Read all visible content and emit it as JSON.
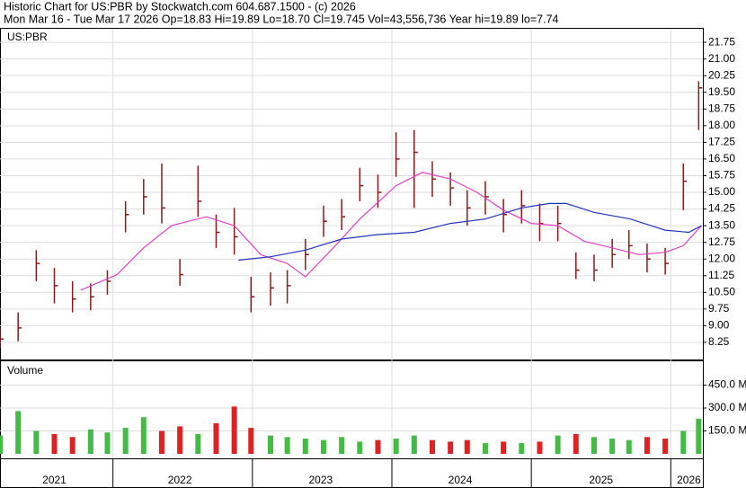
{
  "chart_data": {
    "type": "ohlc",
    "title": "Historic Chart for US:PBR by Stockwatch.com 604.687.1500 - (c) 2026",
    "subtitle": "Mon Mar 16 - Tue Mar 17 2026   Op=18.83   Hi=19.89   Lo=18.70   Cl=19.745   Vol=43,556,736   Year hi=19.89   lo=7.74",
    "symbol": "US:PBR",
    "volume_title": "Volume",
    "xlim": [
      2021.19,
      2026.23
    ],
    "xticks": [
      2022,
      2023,
      2024,
      2025,
      2026
    ],
    "year_labels": [
      {
        "value": 2021.58,
        "label": "2021"
      },
      {
        "value": 2022.48,
        "label": "2022"
      },
      {
        "value": 2023.49,
        "label": "2023"
      },
      {
        "value": 2024.49,
        "label": "2024"
      },
      {
        "value": 2025.5,
        "label": "2025"
      },
      {
        "value": 2026.13,
        "label": "2026"
      }
    ],
    "ylim": [
      7.48,
      22.36
    ],
    "yticks": [
      21.75,
      {
        "value": 21,
        "label": "21.00"
      },
      20.25,
      {
        "value": 19.5,
        "label": "19.50"
      },
      18.75,
      {
        "value": 18,
        "label": "18.00"
      },
      17.25,
      {
        "value": 16.5,
        "label": "16.50"
      },
      15.75,
      {
        "value": 15,
        "label": "15.00"
      },
      14.25,
      {
        "value": 13.5,
        "label": "13.50"
      },
      12.75,
      {
        "value": 12,
        "label": "12.00"
      },
      11.25,
      {
        "value": 10.5,
        "label": "10.50"
      },
      9.75,
      {
        "value": 9,
        "label": "9.00"
      },
      8.25
    ],
    "grid": true,
    "bar_color": "#8b1a1a",
    "up_color": "#44bb44",
    "down_color": "#dd2222",
    "x": [
      2021.19,
      2021.32,
      2021.45,
      2021.58,
      2021.71,
      2021.84,
      2021.96,
      2022.09,
      2022.22,
      2022.35,
      2022.48,
      2022.61,
      2022.74,
      2022.87,
      2022.99,
      2023.13,
      2023.25,
      2023.38,
      2023.51,
      2023.64,
      2023.77,
      2023.9,
      2024.03,
      2024.16,
      2024.29,
      2024.42,
      2024.54,
      2024.67,
      2024.8,
      2024.93,
      2025.06,
      2025.19,
      2025.32,
      2025.45,
      2025.58,
      2025.7,
      2025.83,
      2025.96,
      2026.09,
      2026.2
    ],
    "high": [
      8.9,
      9.6,
      12.4,
      11.6,
      11.0,
      10.9,
      11.5,
      14.6,
      15.6,
      16.3,
      12.0,
      16.2,
      14.0,
      14.3,
      11.2,
      11.4,
      11.5,
      12.9,
      14.4,
      14.7,
      16.1,
      15.8,
      17.7,
      17.8,
      16.4,
      15.9,
      15.1,
      15.5,
      14.7,
      15.1,
      14.5,
      14.4,
      12.3,
      12.2,
      12.9,
      13.3,
      12.7,
      12.5,
      16.3,
      20.0
    ],
    "low": [
      8.0,
      8.3,
      11.0,
      10.0,
      9.6,
      9.7,
      10.4,
      13.2,
      14.0,
      13.6,
      10.8,
      13.9,
      12.5,
      12.2,
      9.6,
      9.9,
      10.0,
      11.5,
      13.0,
      13.3,
      14.6,
      14.3,
      15.7,
      14.3,
      14.8,
      14.4,
      13.5,
      14.0,
      13.2,
      13.6,
      12.8,
      12.8,
      11.1,
      11.0,
      11.6,
      12.0,
      11.4,
      11.3,
      14.2,
      17.8
    ],
    "close": [
      8.4,
      8.9,
      11.8,
      10.8,
      10.2,
      10.3,
      11.0,
      14.0,
      14.8,
      14.3,
      11.3,
      14.6,
      13.2,
      13.0,
      10.3,
      10.7,
      10.8,
      12.2,
      13.7,
      13.9,
      15.3,
      15.0,
      16.5,
      16.8,
      15.6,
      15.2,
      14.3,
      14.8,
      14.0,
      14.4,
      13.6,
      13.6,
      11.5,
      11.5,
      12.2,
      12.6,
      12.0,
      11.8,
      15.5,
      19.7
    ],
    "series": [
      {
        "color": "#e040c0",
        "x": [
          2021.77,
          2022.03,
          2022.22,
          2022.42,
          2022.67,
          2022.87,
          2023.06,
          2023.25,
          2023.38,
          2023.58,
          2023.77,
          2024.03,
          2024.22,
          2024.42,
          2024.61,
          2024.8,
          2025.0,
          2025.19,
          2025.38,
          2025.58,
          2025.77,
          2025.96,
          2026.09,
          2026.22
        ],
        "values": [
          10.6,
          11.3,
          12.5,
          13.5,
          13.9,
          13.5,
          12.2,
          11.8,
          11.2,
          12.5,
          13.8,
          15.3,
          15.9,
          15.6,
          15.0,
          14.2,
          13.6,
          13.5,
          12.8,
          12.5,
          12.2,
          12.3,
          12.6,
          13.5
        ]
      },
      {
        "color": "#2233bb",
        "x": [
          2022.9,
          2023.13,
          2023.38,
          2023.64,
          2023.9,
          2024.16,
          2024.42,
          2024.67,
          2024.93,
          2025.13,
          2025.25,
          2025.45,
          2025.71,
          2025.96,
          2026.13,
          2026.22
        ],
        "values": [
          11.95,
          12.1,
          12.4,
          12.9,
          13.1,
          13.2,
          13.6,
          13.8,
          14.3,
          14.5,
          14.5,
          14.1,
          13.8,
          13.3,
          13.2,
          13.5
        ]
      }
    ],
    "volume": [
      120,
      280,
      150,
      130,
      110,
      160,
      140,
      170,
      240,
      150,
      180,
      130,
      200,
      310,
      170,
      120,
      110,
      100,
      90,
      110,
      80,
      90,
      100,
      120,
      90,
      80,
      90,
      70,
      80,
      70,
      80,
      120,
      130,
      110,
      100,
      90,
      110,
      100,
      150,
      230
    ],
    "vylim": [
      0,
      600
    ],
    "vyticks": [
      {
        "value": 450,
        "label": "450.0 M"
      },
      {
        "value": 300,
        "label": "300.0 M"
      },
      {
        "value": 150,
        "label": "150.0 M"
      }
    ]
  }
}
